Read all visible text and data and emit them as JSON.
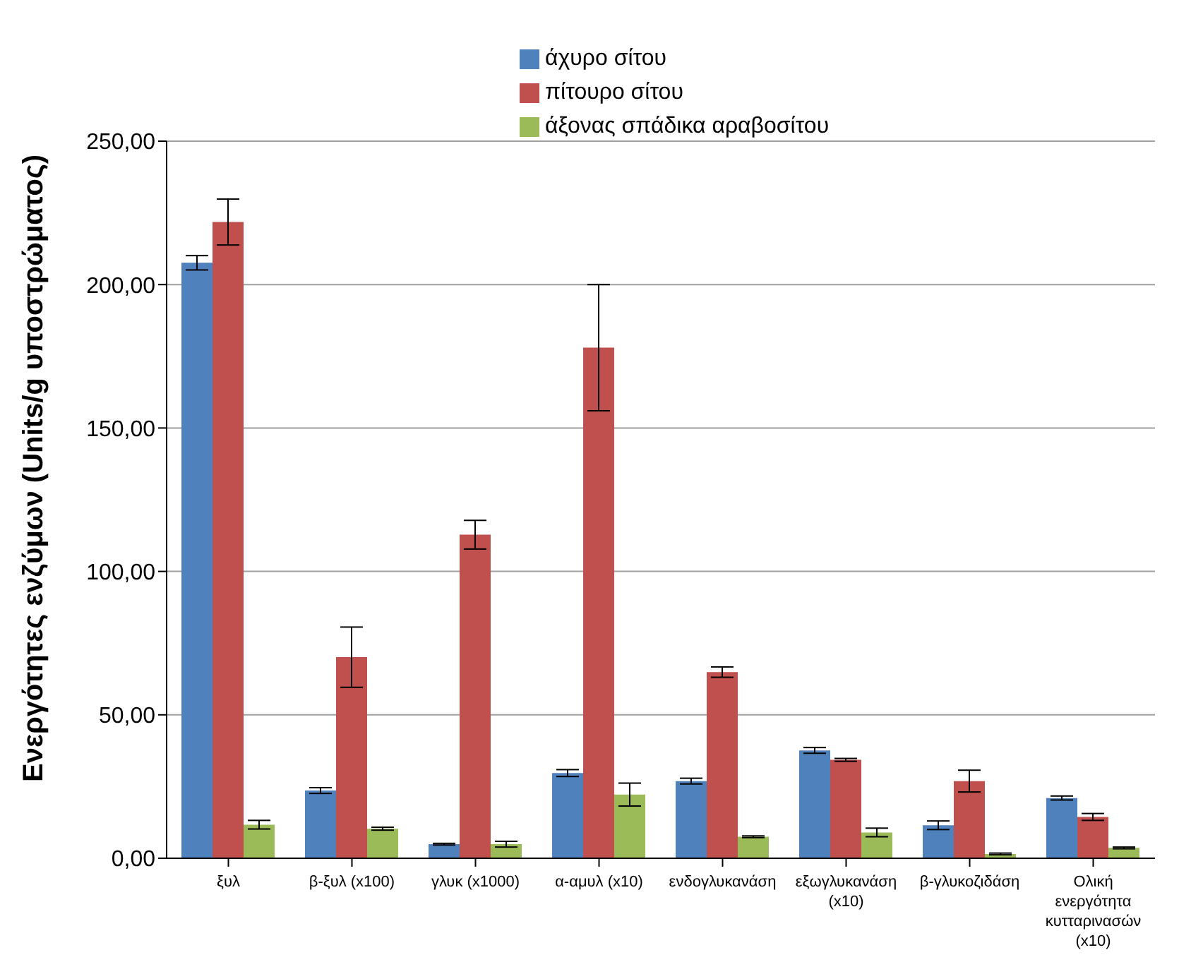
{
  "chart_data": {
    "type": "bar",
    "ylabel": "Ενεργότητες ενζύμων (Units/g υποστρώματος)",
    "categories": [
      "ξυλ",
      "β-ξυλ (x100)",
      "γλυκ (x1000)",
      "α-αμυλ (x10)",
      "ενδογλυκανάση",
      "εξωγλυκανάση (x10)",
      "β-γλυκοζιδάση",
      "Ολική ενεργότητα κυτταρινασών (x10)"
    ],
    "series": [
      {
        "name": "άχυρο σίτου",
        "color": "#4f81bd",
        "values": [
          207.6,
          23.6,
          4.9,
          29.7,
          26.9,
          37.6,
          11.5,
          21.0
        ],
        "errors": [
          2.5,
          1,
          0.3,
          1.2,
          1,
          1,
          1.5,
          0.7
        ]
      },
      {
        "name": "πίτουρο σίτου",
        "color": "#c0504d",
        "values": [
          221.8,
          70.1,
          112.8,
          178,
          64.9,
          34.3,
          26.9,
          14.4
        ],
        "errors": [
          8,
          10.5,
          5,
          22,
          1.8,
          0.5,
          3.8,
          1.2
        ]
      },
      {
        "name": "άξονας σπάδικα αραβοσίτου",
        "color": "#9bbb59",
        "values": [
          11.7,
          10.3,
          4.9,
          22.2,
          7.5,
          9.0,
          1.5,
          3.6
        ],
        "errors": [
          1.5,
          0.5,
          1,
          4,
          0.3,
          1.5,
          0.3,
          0.3
        ]
      }
    ],
    "ylim": [
      0,
      250
    ],
    "yticks": [
      {
        "value": 0,
        "label": "0,00"
      },
      {
        "value": 50,
        "label": "50,00"
      },
      {
        "value": 100,
        "label": "100,00"
      },
      {
        "value": 150,
        "label": "150,00"
      },
      {
        "value": 200,
        "label": "200,00"
      },
      {
        "value": 250,
        "label": "250,00"
      }
    ],
    "grid": "y",
    "legend": "top"
  }
}
